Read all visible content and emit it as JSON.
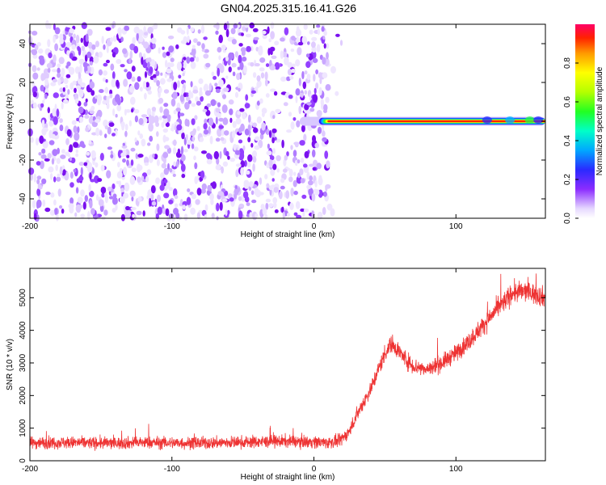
{
  "title": "GN04.2025.315.16.41.G26",
  "chart_data": [
    {
      "type": "heatmap",
      "name": "spectrogram",
      "xlabel": "Height of straight line (km)",
      "ylabel": "Frequency (Hz)",
      "xlim": [
        -200,
        163
      ],
      "ylim": [
        -50,
        50
      ],
      "xticks": [
        -200,
        -100,
        0,
        100
      ],
      "yticks": [
        -40,
        -20,
        0,
        20,
        40
      ],
      "noise_region_x": [
        -200,
        10
      ],
      "signal_line": {
        "frequency_hz": 0,
        "x_start": -10,
        "x_end": 163,
        "peak_amplitude": 1.0
      },
      "colorbar": {
        "label": "Normalized spectral amplitude",
        "range": [
          0,
          1
        ],
        "ticks": [
          "0.0",
          "0.2",
          "0.4",
          "0.6",
          "0.8"
        ],
        "tick_values": [
          0,
          0.2,
          0.4,
          0.6,
          0.8
        ]
      }
    },
    {
      "type": "line",
      "name": "snr",
      "xlabel": "Height of straight line (km)",
      "ylabel": "SNR (10 * v/v)",
      "xlim": [
        -200,
        163
      ],
      "ylim": [
        0,
        5900
      ],
      "xticks": [
        -200,
        -100,
        0,
        100
      ],
      "yticks": [
        0,
        1000,
        2000,
        3000,
        4000,
        5000
      ],
      "color": "#ee3333",
      "x": [
        -200,
        -180,
        -160,
        -140,
        -120,
        -100,
        -80,
        -60,
        -40,
        -20,
        0,
        10,
        18,
        25,
        30,
        40,
        50,
        55,
        60,
        65,
        70,
        80,
        90,
        100,
        110,
        120,
        130,
        140,
        150,
        163
      ],
      "y": [
        550,
        560,
        550,
        540,
        560,
        550,
        540,
        560,
        580,
        600,
        580,
        560,
        600,
        900,
        1400,
        2200,
        3300,
        3600,
        3350,
        3100,
        2900,
        2800,
        3000,
        3300,
        3700,
        4200,
        4700,
        5150,
        5200,
        5000
      ],
      "noise_band": 350
    }
  ]
}
